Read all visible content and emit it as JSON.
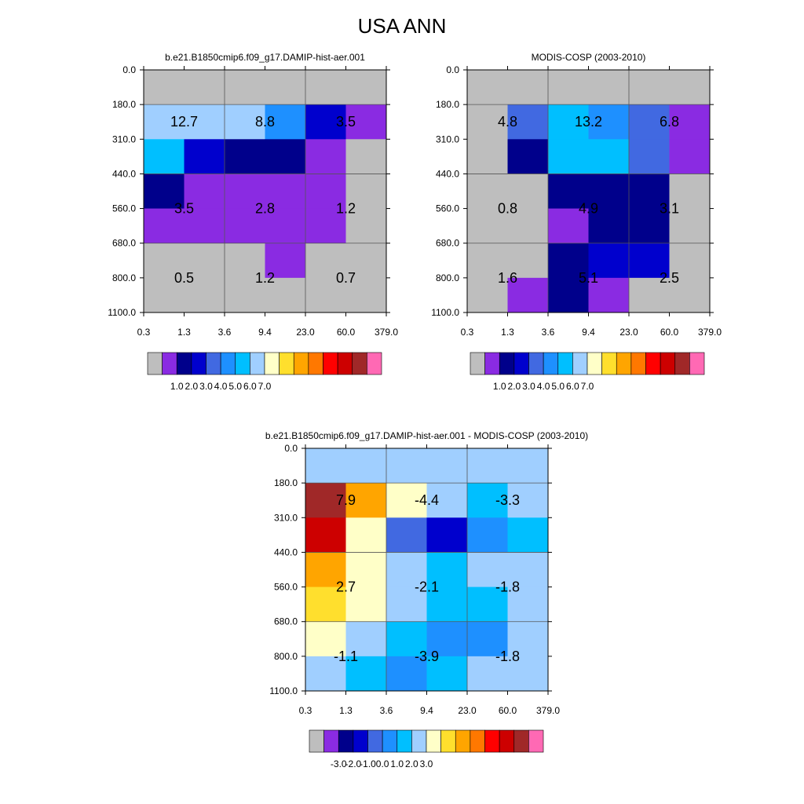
{
  "title": "USA ANN",
  "palettes": {
    "abs": [
      "#bebebe",
      "#8a2be2",
      "#00008b",
      "#0000cd",
      "#4169e1",
      "#1e90ff",
      "#00bfff",
      "#a0cfff",
      "#ffffc8",
      "#ffdf2d",
      "#ffa500",
      "#ff7800",
      "#ff0000",
      "#cd0000",
      "#a02828",
      "#ff69b4"
    ],
    "diff": [
      "#bebebe",
      "#8a2be2",
      "#00008b",
      "#0000cd",
      "#4169e1",
      "#1e90ff",
      "#00bfff",
      "#a0cfff",
      "#ffffc8",
      "#ffdf2d",
      "#ffa500",
      "#ff7800",
      "#ff0000",
      "#cd0000",
      "#a02828",
      "#ff69b4"
    ]
  },
  "chart_data": [
    {
      "type": "heatmap",
      "title": "b.e21.B1850cmip6.f09_g17.DAMIP-hist-aer.001",
      "x_tick_labels": [
        "0.3",
        "1.3",
        "3.6",
        "9.4",
        "23.0",
        "60.0",
        "379.0"
      ],
      "y_tick_labels": [
        "0.0",
        "180.0",
        "310.0",
        "440.0",
        "560.0",
        "680.0",
        "800.0",
        "1100.0"
      ],
      "cell_colors": [
        [
          0,
          0,
          0,
          0,
          0,
          0
        ],
        [
          7,
          7,
          7,
          5,
          3,
          1
        ],
        [
          6,
          3,
          2,
          2,
          1,
          0
        ],
        [
          2,
          1,
          1,
          1,
          1,
          0
        ],
        [
          1,
          1,
          1,
          1,
          1,
          0
        ],
        [
          0,
          0,
          0,
          1,
          0,
          0
        ],
        [
          0,
          0,
          0,
          0,
          0,
          0
        ]
      ],
      "labels": [
        {
          "col": 0,
          "row": 1,
          "text": "12.7"
        },
        {
          "col": 1,
          "row": 1,
          "text": "8.8"
        },
        {
          "col": 2,
          "row": 1,
          "text": "3.5"
        },
        {
          "col": 0,
          "row": 2,
          "text": "3.5"
        },
        {
          "col": 1,
          "row": 2,
          "text": "2.8"
        },
        {
          "col": 2,
          "row": 2,
          "text": "1.2"
        },
        {
          "col": 0,
          "row": 3,
          "text": "0.5"
        },
        {
          "col": 1,
          "row": 3,
          "text": "1.2"
        },
        {
          "col": 2,
          "row": 3,
          "text": "0.7"
        }
      ],
      "colorbar": {
        "palette": "abs",
        "tick_labels": [
          "1.0",
          "2.0",
          "3.0",
          "4.0",
          "5.0",
          "6.0",
          "7.0"
        ]
      }
    },
    {
      "type": "heatmap",
      "title": "MODIS-COSP (2003-2010)",
      "x_tick_labels": [
        "0.3",
        "1.3",
        "3.6",
        "9.4",
        "23.0",
        "60.0",
        "379.0"
      ],
      "y_tick_labels": [
        "0.0",
        "180.0",
        "310.0",
        "440.0",
        "560.0",
        "680.0",
        "800.0",
        "1100.0"
      ],
      "cell_colors": [
        [
          0,
          0,
          0,
          0,
          0,
          0
        ],
        [
          0,
          4,
          6,
          5,
          4,
          1
        ],
        [
          0,
          2,
          6,
          6,
          4,
          1
        ],
        [
          0,
          0,
          2,
          2,
          2,
          0
        ],
        [
          0,
          0,
          1,
          2,
          2,
          0
        ],
        [
          0,
          0,
          2,
          3,
          3,
          0
        ],
        [
          0,
          1,
          2,
          1,
          0,
          0
        ]
      ],
      "labels": [
        {
          "col": 0,
          "row": 1,
          "text": "4.8"
        },
        {
          "col": 1,
          "row": 1,
          "text": "13.2"
        },
        {
          "col": 2,
          "row": 1,
          "text": "6.8"
        },
        {
          "col": 0,
          "row": 2,
          "text": "0.8"
        },
        {
          "col": 1,
          "row": 2,
          "text": "4.9"
        },
        {
          "col": 2,
          "row": 2,
          "text": "3.1"
        },
        {
          "col": 0,
          "row": 3,
          "text": "1.6"
        },
        {
          "col": 1,
          "row": 3,
          "text": "5.1"
        },
        {
          "col": 2,
          "row": 3,
          "text": "2.5"
        }
      ],
      "colorbar": {
        "palette": "abs",
        "tick_labels": [
          "1.0",
          "2.0",
          "3.0",
          "4.0",
          "5.0",
          "6.0",
          "7.0"
        ]
      }
    },
    {
      "type": "heatmap",
      "title": "b.e21.B1850cmip6.f09_g17.DAMIP-hist-aer.001 - MODIS-COSP (2003-2010)",
      "x_tick_labels": [
        "0.3",
        "1.3",
        "3.6",
        "9.4",
        "23.0",
        "60.0",
        "379.0"
      ],
      "y_tick_labels": [
        "0.0",
        "180.0",
        "310.0",
        "440.0",
        "560.0",
        "680.0",
        "800.0",
        "1100.0"
      ],
      "cell_colors": [
        [
          7,
          7,
          7,
          7,
          7,
          7
        ],
        [
          14,
          10,
          8,
          7,
          6,
          7
        ],
        [
          13,
          8,
          4,
          3,
          5,
          6
        ],
        [
          10,
          8,
          7,
          6,
          7,
          7
        ],
        [
          9,
          8,
          7,
          6,
          6,
          7
        ],
        [
          8,
          7,
          6,
          5,
          5,
          7
        ],
        [
          7,
          6,
          5,
          6,
          7,
          7
        ]
      ],
      "labels": [
        {
          "col": 0,
          "row": 1,
          "text": "7.9"
        },
        {
          "col": 1,
          "row": 1,
          "text": "-4.4"
        },
        {
          "col": 2,
          "row": 1,
          "text": "-3.3"
        },
        {
          "col": 0,
          "row": 2,
          "text": "2.7"
        },
        {
          "col": 1,
          "row": 2,
          "text": "-2.1"
        },
        {
          "col": 2,
          "row": 2,
          "text": "-1.8"
        },
        {
          "col": 0,
          "row": 3,
          "text": "-1.1"
        },
        {
          "col": 1,
          "row": 3,
          "text": "-3.9"
        },
        {
          "col": 2,
          "row": 3,
          "text": "-1.8"
        }
      ],
      "colorbar": {
        "palette": "diff",
        "tick_labels": [
          "-3.0",
          "-2.0",
          "-1.0",
          "0.0",
          "1.0",
          "2.0",
          "3.0"
        ]
      }
    }
  ]
}
